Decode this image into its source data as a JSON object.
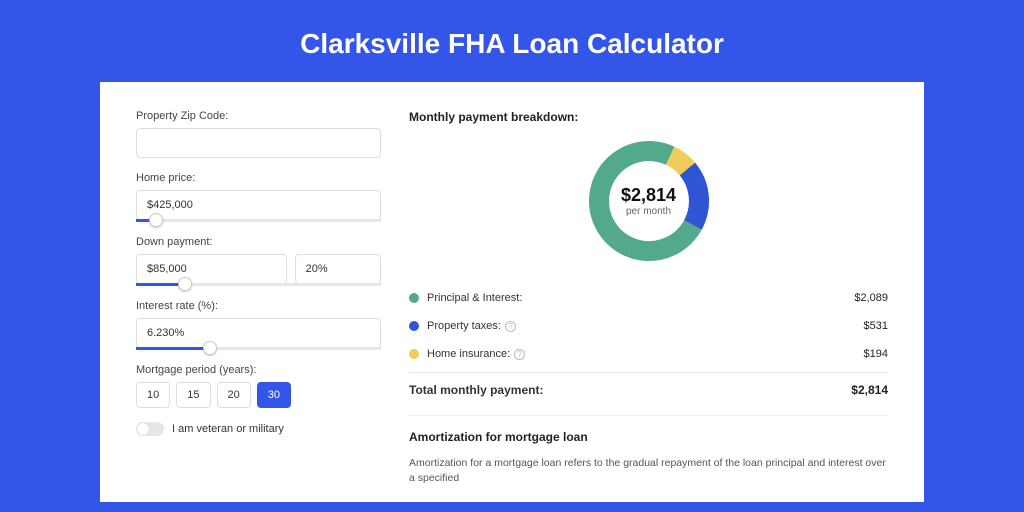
{
  "page_title": "Clarksville FHA Loan Calculator",
  "form": {
    "zip": {
      "label": "Property Zip Code:",
      "value": ""
    },
    "home_price": {
      "label": "Home price:",
      "value": "$425,000",
      "slider_pct": 8
    },
    "down_payment": {
      "label": "Down payment:",
      "value": "$85,000",
      "pct_value": "20%",
      "slider_pct": 20
    },
    "interest_rate": {
      "label": "Interest rate (%):",
      "value": "6.230%",
      "slider_pct": 30
    },
    "mortgage_period": {
      "label": "Mortgage period (years):",
      "options": [
        "10",
        "15",
        "20",
        "30"
      ],
      "selected": "30"
    },
    "veteran": {
      "label": "I am veteran or military",
      "checked": false
    }
  },
  "breakdown": {
    "title": "Monthly payment breakdown:",
    "donut": {
      "center_amount": "$2,814",
      "center_sub": "per month",
      "segments": [
        {
          "label": "Principal & Interest:",
          "amount": "$2,089",
          "color": "#53a98c",
          "pct": 74
        },
        {
          "label": "Property taxes:",
          "amount": "$531",
          "color": "#2f55d4",
          "pct": 19,
          "info": true
        },
        {
          "label": "Home insurance:",
          "amount": "$194",
          "color": "#f0cc5a",
          "pct": 7,
          "info": true
        }
      ]
    },
    "total": {
      "label": "Total monthly payment:",
      "amount": "$2,814"
    }
  },
  "amortization": {
    "title": "Amortization for mortgage loan",
    "text": "Amortization for a mortgage loan refers to the gradual repayment of the loan principal and interest over a specified"
  },
  "style": {
    "accent": "#3355e8",
    "bg": "#3355e8",
    "card_bg": "#ffffff",
    "donut_thickness": 20
  }
}
